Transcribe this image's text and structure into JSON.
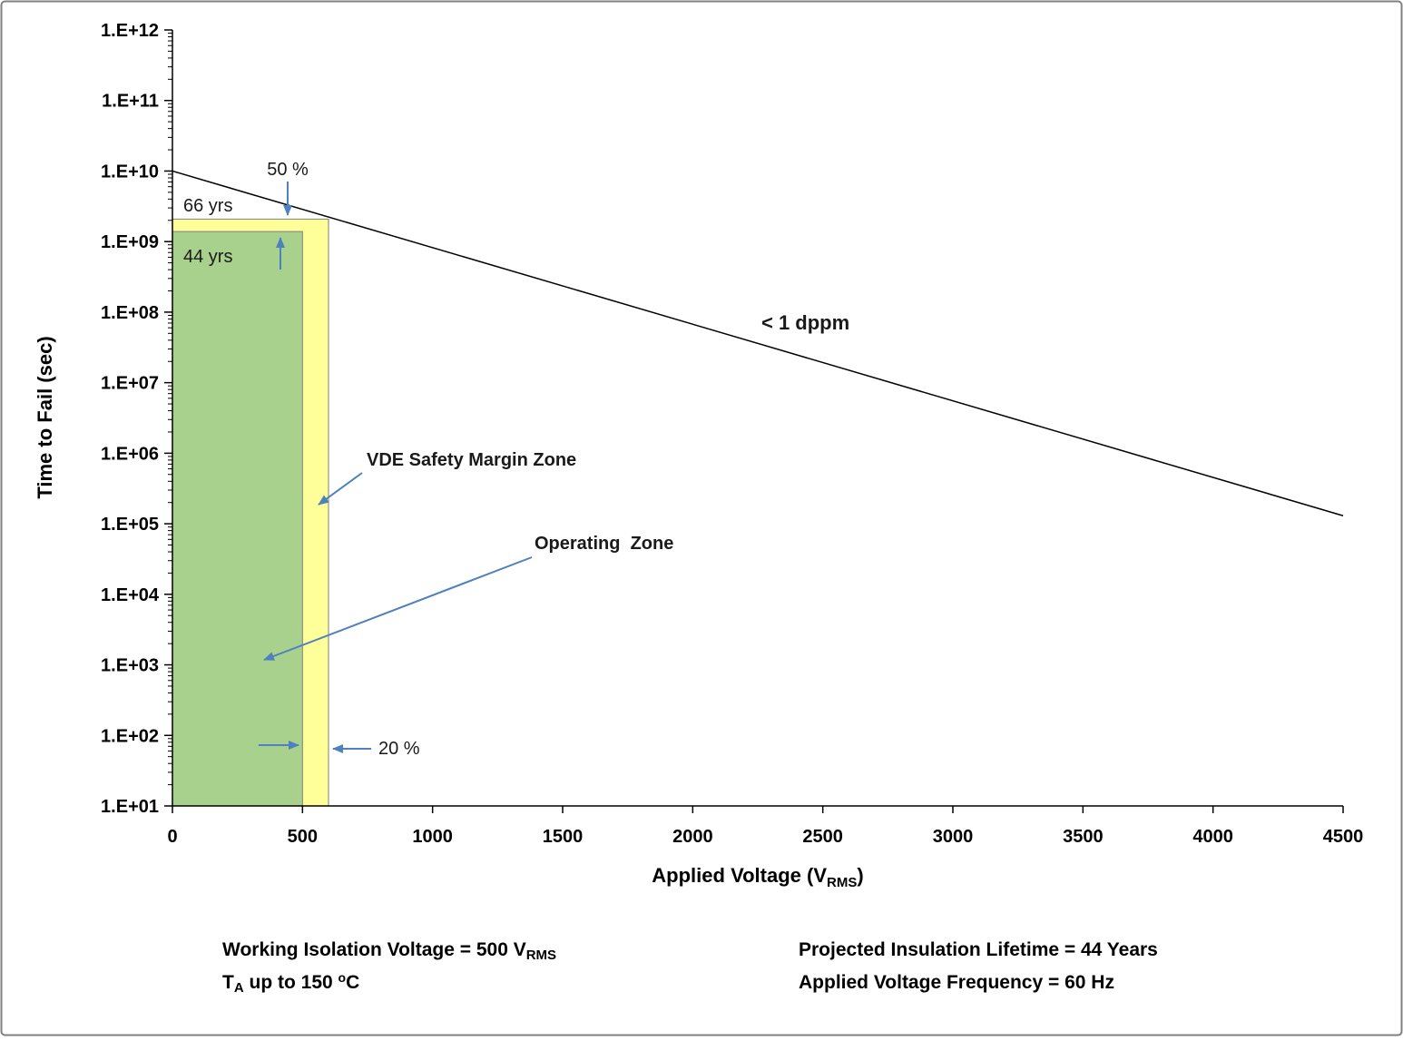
{
  "page": {
    "background": "#ffffff",
    "border_color": "#808080"
  },
  "chart_data": {
    "type": "line",
    "x_axis": {
      "title_main": "Applied Voltage (V",
      "title_sub": "RMS",
      "title_end": ")",
      "range": [
        0,
        4500
      ],
      "ticks": [
        {
          "label": "0",
          "value": 0
        },
        {
          "label": "500",
          "value": 500
        },
        {
          "label": "1000",
          "value": 1000
        },
        {
          "label": "1500",
          "value": 1500
        },
        {
          "label": "2000",
          "value": 2000
        },
        {
          "label": "2500",
          "value": 2500
        },
        {
          "label": "3000",
          "value": 3000
        },
        {
          "label": "3500",
          "value": 3500
        },
        {
          "label": "4000",
          "value": 4000
        },
        {
          "label": "4500",
          "value": 4500
        }
      ]
    },
    "y_axis": {
      "title": "Time to Fail (sec)",
      "scale": "log",
      "range": [
        10,
        1000000000000
      ],
      "ticks": [
        {
          "label": "1.E+01",
          "value": 10
        },
        {
          "label": "1.E+02",
          "value": 100
        },
        {
          "label": "1.E+03",
          "value": 1000
        },
        {
          "label": "1.E+04",
          "value": 10000
        },
        {
          "label": "1.E+05",
          "value": 100000
        },
        {
          "label": "1.E+06",
          "value": 1000000
        },
        {
          "label": "1.E+07",
          "value": 10000000
        },
        {
          "label": "1.E+08",
          "value": 100000000
        },
        {
          "label": "1.E+09",
          "value": 1000000000
        },
        {
          "label": "1.E+10",
          "value": 10000000000
        },
        {
          "label": "1.E+11",
          "value": 100000000000
        },
        {
          "label": "1.E+12",
          "value": 1000000000000
        }
      ]
    },
    "series": [
      {
        "name": "failure-rate-line",
        "label": "< 1 dppm",
        "color": "#000000",
        "x": [
          0,
          4500
        ],
        "y": [
          10000000000,
          130000
        ]
      }
    ],
    "zones": [
      {
        "name": "vde-safety-margin-zone",
        "label": "66 yrs",
        "x": [
          0,
          600
        ],
        "y": [
          10,
          2082801600
        ],
        "fill": "#ffff99",
        "stroke": "#7f7f7f"
      },
      {
        "name": "operating-zone",
        "label": "44 yrs",
        "x": [
          0,
          500
        ],
        "y": [
          10,
          1388534400
        ],
        "fill": "#a9d18e",
        "stroke": "#7f7f7f"
      }
    ],
    "annotations": {
      "pct50": "50 %",
      "yrs66": "66 yrs",
      "yrs44": "44 yrs",
      "vde_zone": "VDE Safety Margin Zone",
      "operating_zone": "Operating  Zone",
      "dppm": "< 1 dppm",
      "pct20": "20 %"
    },
    "arrow_color": "#4f81bd"
  },
  "footer": {
    "left_line1_main": "Working Isolation Voltage = 500 V",
    "left_line1_sub": "RMS",
    "left_line2_t": "T",
    "left_line2_sub": "A",
    "left_line2_mid": " up to 150 ",
    "left_line2_sup": "o",
    "left_line2_c": "C",
    "right_line1": "Projected Insulation Lifetime = 44 Years",
    "right_line2": "Applied Voltage Frequency = 60 Hz"
  }
}
